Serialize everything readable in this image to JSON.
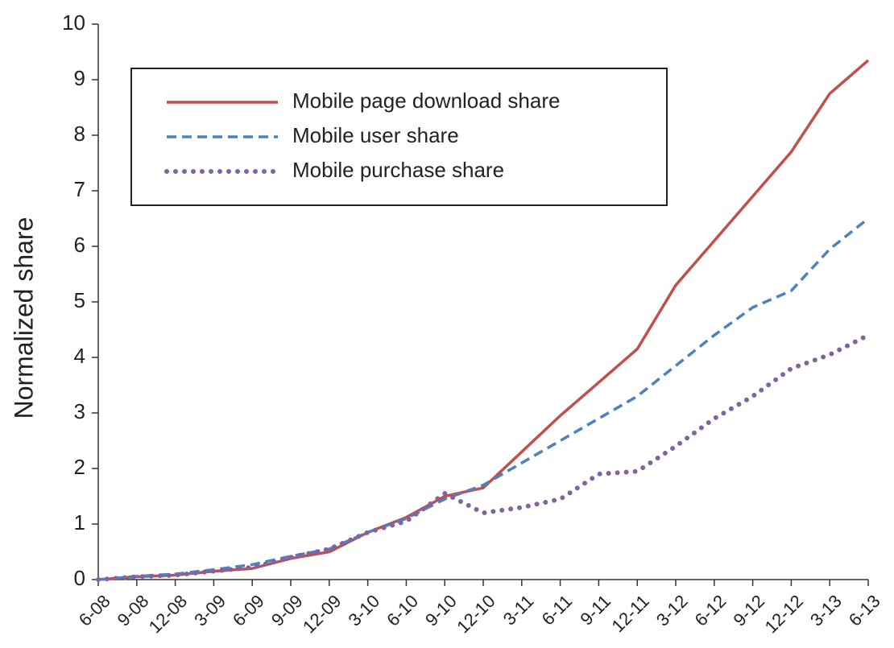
{
  "chart_data": {
    "type": "line",
    "ylabel": "Normalized share",
    "categories": [
      "6-08",
      "9-08",
      "12-08",
      "3-09",
      "6-09",
      "9-09",
      "12-09",
      "3-10",
      "6-10",
      "9-10",
      "12-10",
      "3-11",
      "6-11",
      "9-11",
      "12-11",
      "3-12",
      "6-12",
      "9-12",
      "12-12",
      "3-13",
      "6-13"
    ],
    "series": [
      {
        "name": "Mobile page download share",
        "color": "#c0504d",
        "style": "solid",
        "values": [
          0,
          0.05,
          0.08,
          0.15,
          0.2,
          0.38,
          0.5,
          0.85,
          1.12,
          1.5,
          1.65,
          2.3,
          2.95,
          3.55,
          4.15,
          5.3,
          6.1,
          6.9,
          7.7,
          8.75,
          9.35
        ]
      },
      {
        "name": "Mobile user share",
        "color": "#4f81bd",
        "style": "dashed",
        "values": [
          0,
          0.06,
          0.1,
          0.18,
          0.27,
          0.42,
          0.55,
          0.85,
          1.1,
          1.45,
          1.7,
          2.1,
          2.5,
          2.9,
          3.3,
          3.85,
          4.4,
          4.9,
          5.2,
          5.95,
          6.5
        ]
      },
      {
        "name": "Mobile purchase share",
        "color": "#8064a2",
        "style": "dotted",
        "values": [
          0,
          0.05,
          0.08,
          0.15,
          0.22,
          0.4,
          0.55,
          0.85,
          1.05,
          1.55,
          1.2,
          1.3,
          1.45,
          1.9,
          1.95,
          2.4,
          2.9,
          3.3,
          3.8,
          4.05,
          4.4
        ]
      }
    ],
    "ylim": [
      0,
      10
    ],
    "yticks": [
      0,
      1,
      2,
      3,
      4,
      5,
      6,
      7,
      8,
      9,
      10
    ],
    "grid": false,
    "legend": "upper left"
  }
}
